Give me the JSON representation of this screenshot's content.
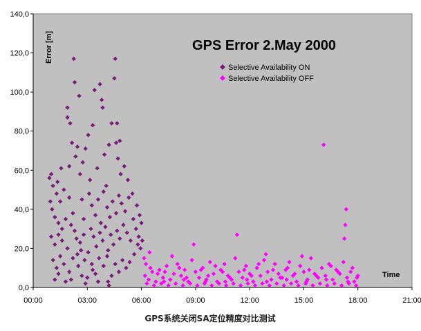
{
  "caption": "GPS系统关闭SA定位精度对比测试",
  "chart_data": {
    "type": "scatter",
    "title": "GPS Error 2.May 2000",
    "xlabel": "Time",
    "ylabel": "Error [m]",
    "xlim": [
      0,
      21
    ],
    "ylim": [
      0,
      140
    ],
    "x_unit": "hours",
    "x_ticks": [
      "00:00",
      "03:00",
      "06:00",
      "09:00",
      "12:00",
      "15:00",
      "18:00",
      "21:00"
    ],
    "y_ticks": [
      "0,0",
      "20,0",
      "40,0",
      "60,0",
      "80,0",
      "100,0",
      "120,0",
      "140,0"
    ],
    "grid": false,
    "legend_position": "top-center",
    "plot_background": "#c0c0c0",
    "series": [
      {
        "name": "Selective Availability ON",
        "color": "#7a1a7a",
        "marker": "diamond",
        "points": [
          [
            0.9,
            56
          ],
          [
            1.0,
            58
          ],
          [
            1.1,
            52
          ],
          [
            1.3,
            48
          ],
          [
            1.5,
            44
          ],
          [
            1.7,
            50
          ],
          [
            2.0,
            46
          ],
          [
            2.2,
            38
          ],
          [
            0.95,
            44
          ],
          [
            1.05,
            40
          ],
          [
            1.2,
            36
          ],
          [
            1.4,
            33
          ],
          [
            1.6,
            30
          ],
          [
            1.8,
            35
          ],
          [
            2.1,
            32
          ],
          [
            2.3,
            29
          ],
          [
            1.0,
            26
          ],
          [
            1.2,
            22
          ],
          [
            1.4,
            27
          ],
          [
            1.6,
            24
          ],
          [
            1.9,
            20
          ],
          [
            2.4,
            25
          ],
          [
            2.6,
            23
          ],
          [
            2.8,
            27
          ],
          [
            1.1,
            14
          ],
          [
            1.3,
            10
          ],
          [
            1.5,
            16
          ],
          [
            1.7,
            12
          ],
          [
            2.0,
            8
          ],
          [
            2.2,
            15
          ],
          [
            2.5,
            11
          ],
          [
            2.7,
            6
          ],
          [
            1.2,
            4
          ],
          [
            1.4,
            7
          ],
          [
            1.8,
            3
          ],
          [
            2.9,
            2
          ],
          [
            3.0,
            5
          ],
          [
            3.3,
            9
          ],
          [
            3.6,
            3
          ],
          [
            4.2,
            1
          ],
          [
            1.9,
            92
          ],
          [
            1.9,
            87
          ],
          [
            2.05,
            84
          ],
          [
            2.25,
            117
          ],
          [
            2.3,
            105
          ],
          [
            2.15,
            74
          ],
          [
            2.0,
            62
          ],
          [
            2.35,
            67
          ],
          [
            2.45,
            72
          ],
          [
            2.6,
            58
          ],
          [
            2.75,
            64
          ],
          [
            2.9,
            71
          ],
          [
            3.05,
            78
          ],
          [
            3.15,
            55
          ],
          [
            3.3,
            83
          ],
          [
            3.4,
            101
          ],
          [
            3.55,
            61
          ],
          [
            3.7,
            104
          ],
          [
            3.8,
            96
          ],
          [
            3.95,
            68
          ],
          [
            4.05,
            52
          ],
          [
            4.2,
            73
          ],
          [
            4.35,
            84
          ],
          [
            4.55,
            117
          ],
          [
            4.5,
            107
          ],
          [
            4.6,
            74
          ],
          [
            4.7,
            66
          ],
          [
            4.85,
            58
          ],
          [
            3.1,
            48
          ],
          [
            3.25,
            42
          ],
          [
            3.45,
            37
          ],
          [
            3.6,
            45
          ],
          [
            3.75,
            33
          ],
          [
            3.9,
            49
          ],
          [
            4.1,
            41
          ],
          [
            4.25,
            36
          ],
          [
            4.4,
            44
          ],
          [
            4.6,
            38
          ],
          [
            4.75,
            47
          ],
          [
            4.9,
            43
          ],
          [
            5.1,
            39
          ],
          [
            5.3,
            46
          ],
          [
            3.2,
            30
          ],
          [
            3.35,
            26
          ],
          [
            3.5,
            21
          ],
          [
            3.7,
            28
          ],
          [
            3.85,
            24
          ],
          [
            4.0,
            31
          ],
          [
            4.15,
            19
          ],
          [
            4.3,
            27
          ],
          [
            4.45,
            22
          ],
          [
            4.65,
            29
          ],
          [
            4.8,
            25
          ],
          [
            5.0,
            32
          ],
          [
            5.2,
            28
          ],
          [
            5.4,
            24
          ],
          [
            5.55,
            35
          ],
          [
            5.7,
            30
          ],
          [
            5.85,
            26
          ],
          [
            5.95,
            20
          ],
          [
            5.6,
            17
          ],
          [
            5.35,
            13
          ],
          [
            5.15,
            10
          ],
          [
            4.95,
            14
          ],
          [
            4.75,
            8
          ],
          [
            4.55,
            12
          ],
          [
            4.35,
            6
          ],
          [
            4.1,
            16
          ],
          [
            3.9,
            11
          ],
          [
            3.65,
            15
          ],
          [
            3.45,
            7
          ],
          [
            3.25,
            12
          ],
          [
            3.05,
            18
          ],
          [
            2.85,
            14
          ],
          [
            2.65,
            19
          ],
          [
            2.45,
            17
          ],
          [
            5.5,
            48
          ],
          [
            5.75,
            42
          ],
          [
            5.9,
            37
          ],
          [
            6.0,
            33
          ],
          [
            5.25,
            55
          ],
          [
            5.05,
            62
          ],
          [
            4.8,
            75
          ],
          [
            4.65,
            84
          ],
          [
            2.55,
            98
          ],
          [
            3.85,
            92
          ],
          [
            2.7,
            45
          ],
          [
            2.8,
            35
          ],
          [
            1.55,
            61
          ],
          [
            1.35,
            54
          ],
          [
            5.8,
            22
          ],
          [
            6.05,
            24
          ],
          [
            4.15,
            3
          ],
          [
            2.1,
            4
          ]
        ]
      },
      {
        "name": "Selective Availability OFF",
        "color": "#ff00ff",
        "marker": "diamond",
        "points": [
          [
            6.2,
            6
          ],
          [
            6.4,
            4
          ],
          [
            6.6,
            8
          ],
          [
            6.8,
            3
          ],
          [
            7.0,
            9
          ],
          [
            7.2,
            5
          ],
          [
            7.4,
            11
          ],
          [
            7.6,
            4
          ],
          [
            7.8,
            7
          ],
          [
            8.0,
            12
          ],
          [
            8.2,
            6
          ],
          [
            8.4,
            9
          ],
          [
            8.6,
            3
          ],
          [
            8.8,
            14
          ],
          [
            9.0,
            8
          ],
          [
            9.2,
            5
          ],
          [
            9.4,
            10
          ],
          [
            9.6,
            4
          ],
          [
            9.8,
            13
          ],
          [
            10.0,
            7
          ],
          [
            10.2,
            3
          ],
          [
            10.4,
            9
          ],
          [
            10.6,
            12
          ],
          [
            10.8,
            6
          ],
          [
            11.0,
            4
          ],
          [
            11.2,
            15
          ],
          [
            11.4,
            8
          ],
          [
            11.6,
            5
          ],
          [
            11.8,
            11
          ],
          [
            12.0,
            7
          ],
          [
            12.2,
            3
          ],
          [
            12.4,
            10
          ],
          [
            12.6,
            6
          ],
          [
            12.8,
            14
          ],
          [
            13.0,
            8
          ],
          [
            13.2,
            4
          ],
          [
            13.4,
            12
          ],
          [
            13.6,
            7
          ],
          [
            13.8,
            5
          ],
          [
            14.0,
            9
          ],
          [
            14.2,
            13
          ],
          [
            14.4,
            6
          ],
          [
            14.6,
            3
          ],
          [
            14.8,
            11
          ],
          [
            15.0,
            8
          ],
          [
            15.2,
            4
          ],
          [
            15.4,
            15
          ],
          [
            15.6,
            7
          ],
          [
            15.8,
            5
          ],
          [
            16.0,
            10
          ],
          [
            16.2,
            6
          ],
          [
            16.4,
            12
          ],
          [
            16.6,
            4
          ],
          [
            16.8,
            9
          ],
          [
            17.0,
            7
          ],
          [
            17.2,
            13
          ],
          [
            17.4,
            5
          ],
          [
            17.6,
            8
          ],
          [
            17.8,
            3
          ],
          [
            18.0,
            6
          ],
          [
            6.3,
            2
          ],
          [
            6.7,
            1
          ],
          [
            7.1,
            2
          ],
          [
            7.5,
            1
          ],
          [
            7.9,
            2
          ],
          [
            8.3,
            1
          ],
          [
            8.7,
            2
          ],
          [
            9.1,
            1
          ],
          [
            9.5,
            2
          ],
          [
            9.9,
            1
          ],
          [
            10.3,
            2
          ],
          [
            10.7,
            1
          ],
          [
            11.1,
            2
          ],
          [
            11.5,
            1
          ],
          [
            11.9,
            2
          ],
          [
            12.3,
            1
          ],
          [
            12.7,
            2
          ],
          [
            13.1,
            1
          ],
          [
            13.5,
            2
          ],
          [
            13.9,
            1
          ],
          [
            14.3,
            2
          ],
          [
            14.7,
            1
          ],
          [
            15.1,
            2
          ],
          [
            15.5,
            1
          ],
          [
            15.9,
            2
          ],
          [
            16.3,
            1
          ],
          [
            16.7,
            2
          ],
          [
            17.1,
            1
          ],
          [
            17.5,
            2
          ],
          [
            17.9,
            1
          ],
          [
            6.5,
            10
          ],
          [
            6.9,
            7
          ],
          [
            7.3,
            8
          ],
          [
            7.7,
            16
          ],
          [
            8.1,
            10
          ],
          [
            8.5,
            5
          ],
          [
            8.9,
            22
          ],
          [
            9.3,
            9
          ],
          [
            9.7,
            6
          ],
          [
            10.1,
            11
          ],
          [
            10.5,
            8
          ],
          [
            10.9,
            5
          ],
          [
            11.3,
            27
          ],
          [
            11.7,
            9
          ],
          [
            12.1,
            6
          ],
          [
            12.5,
            12
          ],
          [
            12.9,
            17
          ],
          [
            13.3,
            9
          ],
          [
            13.7,
            5
          ],
          [
            14.1,
            10
          ],
          [
            14.5,
            7
          ],
          [
            14.9,
            16
          ],
          [
            15.3,
            9
          ],
          [
            15.7,
            6
          ],
          [
            16.1,
            73
          ],
          [
            16.5,
            11
          ],
          [
            16.9,
            8
          ],
          [
            17.25,
            25
          ],
          [
            17.3,
            32
          ],
          [
            17.35,
            40
          ],
          [
            17.7,
            10
          ],
          [
            17.95,
            5
          ],
          [
            6.15,
            15
          ],
          [
            6.25,
            12
          ],
          [
            6.45,
            18
          ],
          [
            7.25,
            3
          ],
          [
            8.35,
            4
          ],
          [
            9.55,
            3
          ],
          [
            10.65,
            3
          ],
          [
            11.85,
            4
          ],
          [
            12.95,
            3
          ],
          [
            14.05,
            4
          ],
          [
            15.15,
            3
          ],
          [
            16.25,
            4
          ],
          [
            17.45,
            3
          ]
        ]
      }
    ]
  }
}
